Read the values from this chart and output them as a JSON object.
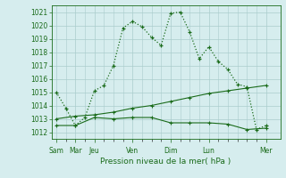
{
  "title": "",
  "xlabel": "Pression niveau de la mer( hPa )",
  "background_color": "#d6edee",
  "grid_color": "#aacccc",
  "line_color": "#1a6b1a",
  "ylim": [
    1011.5,
    1021.5
  ],
  "yticks": [
    1012,
    1013,
    1014,
    1015,
    1016,
    1017,
    1018,
    1019,
    1020,
    1021
  ],
  "major_xtick_labels": [
    "Sam",
    "Mar",
    "Jeu",
    "Ven",
    "Dim",
    "Lun",
    "Mer"
  ],
  "major_xtick_positions": [
    0,
    2,
    4,
    8,
    12,
    16,
    22
  ],
  "xlim": [
    -0.5,
    23.5
  ],
  "line1_x": [
    0,
    1,
    2,
    3,
    4,
    5,
    6,
    7,
    8,
    9,
    10,
    11,
    12,
    13,
    14,
    15,
    16,
    17,
    18,
    19,
    20,
    21,
    22
  ],
  "line1_y": [
    1015.0,
    1013.8,
    1012.5,
    1013.1,
    1015.1,
    1015.5,
    1017.0,
    1019.8,
    1020.3,
    1019.9,
    1019.1,
    1018.5,
    1020.9,
    1021.0,
    1019.5,
    1017.5,
    1018.4,
    1017.3,
    1016.7,
    1015.6,
    1015.4,
    1012.2,
    1012.5
  ],
  "line2_x": [
    0,
    2,
    4,
    6,
    8,
    10,
    12,
    14,
    16,
    18,
    20,
    22
  ],
  "line2_y": [
    1012.5,
    1012.5,
    1013.1,
    1013.0,
    1013.1,
    1013.1,
    1012.7,
    1012.7,
    1012.7,
    1012.6,
    1012.2,
    1012.3
  ],
  "line3_x": [
    0,
    2,
    4,
    6,
    8,
    10,
    12,
    14,
    16,
    18,
    20,
    22
  ],
  "line3_y": [
    1013.0,
    1013.2,
    1013.3,
    1013.5,
    1013.8,
    1014.0,
    1014.3,
    1014.6,
    1014.9,
    1015.1,
    1015.3,
    1015.5
  ]
}
